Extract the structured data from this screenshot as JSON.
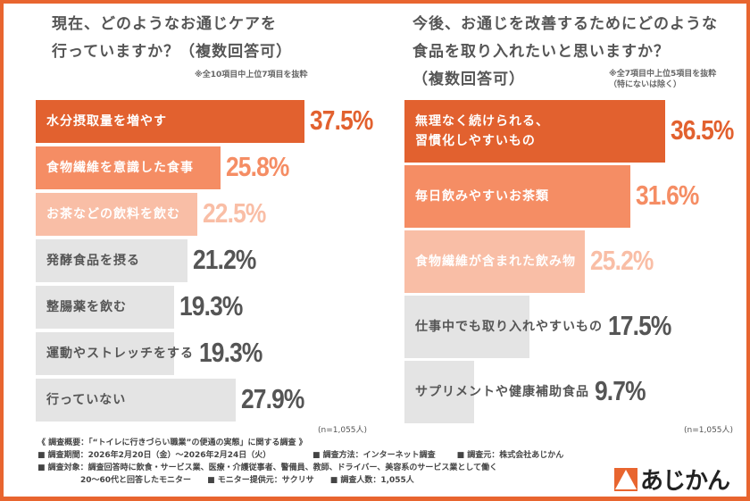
{
  "colors": {
    "accent": "#e8652f",
    "bar1": "#e2612f",
    "bar2": "#f58d64",
    "bar3": "#f9bea6",
    "bar_other": "#e4e4e4",
    "text_other": "#555555"
  },
  "chart_data": [
    {
      "type": "bar",
      "orientation": "horizontal",
      "title": "現在、どのようなお通じケアを\n行っていますか？（複数回答可）",
      "title_lines": [
        "現在、どのようなお通じケアを",
        "行っていますか？（複数回答可）"
      ],
      "note": "※全10項目中上位7項目を抜粋",
      "categories": [
        "水分摂取量を増やす",
        "食物繊維を意識した食事",
        "お茶などの飲料を飲む",
        "発酵食品を摂る",
        "整腸薬を飲む",
        "運動やストレッチをする",
        "行っていない"
      ],
      "category_lines": [
        [
          "水分摂取量を増やす"
        ],
        [
          "食物繊維を意識した食事"
        ],
        [
          "お茶などの飲料を飲む"
        ],
        [
          "発酵食品を摂る"
        ],
        [
          "整腸薬を飲む"
        ],
        [
          "運動やストレッチをする"
        ],
        [
          "行っていない"
        ]
      ],
      "values": [
        37.5,
        25.8,
        22.5,
        21.2,
        19.3,
        19.3,
        27.9
      ],
      "labels": [
        "37.5%",
        "25.8%",
        "22.5%",
        "21.2%",
        "19.3%",
        "19.3%",
        "27.9%"
      ],
      "unit": "%",
      "sample": "(n=1,055人)"
    },
    {
      "type": "bar",
      "orientation": "horizontal",
      "title": "今後、お通じを改善するためにどのような\n食品を取り入れたいと思いますか？\n（複数回答可）",
      "title_lines": [
        "今後、お通じを改善するためにどのような",
        "食品を取り入れたいと思いますか？",
        "（複数回答可）"
      ],
      "note": "※全7項目中上位5項目を抜粋\n（特にないは除く）",
      "note_lines": [
        "※全7項目中上位5項目を抜粋",
        "（特にないは除く）"
      ],
      "categories": [
        "無理なく続けられる、習慣化しやすいもの",
        "毎日飲みやすいお茶類",
        "食物繊維が含まれた飲み物",
        "仕事中でも取り入れやすいもの",
        "サプリメントや健康補助食品"
      ],
      "category_lines": [
        [
          "無理なく続けられる、",
          "習慣化しやすいもの"
        ],
        [
          "毎日飲みやすいお茶類"
        ],
        [
          "食物繊維が含まれた飲み物"
        ],
        [
          "仕事中でも取り入れやすいもの"
        ],
        [
          "サプリメントや健康補助食品"
        ]
      ],
      "values": [
        36.5,
        31.6,
        25.2,
        17.5,
        9.7
      ],
      "labels": [
        "36.5%",
        "31.6%",
        "25.2%",
        "17.5%",
        "9.7%"
      ],
      "unit": "%",
      "sample": "(n=1,055人)"
    }
  ],
  "footer": {
    "overview": "《 調査概要：「“トイレに行きづらい職業”の便通の実態」に関する調査 》",
    "period": "■ 調査期間：2026年2月20日（金）〜2026年2月24日（火）",
    "method": "■ 調査方法：インターネット調査",
    "source": "■ 調査元：株式会社あじかん",
    "target": "■ 調査対象：調査回答時に飲食・サービス業、医療・介護従事者、警備員、教師、ドライバー、美容系のサービス業として働く",
    "target2": "20〜60代と回答したモニター",
    "provider": "■ モニター提供元：サクリサ",
    "count": "■ 調査人数：1,055人"
  },
  "logo": {
    "text": "あじかん"
  }
}
